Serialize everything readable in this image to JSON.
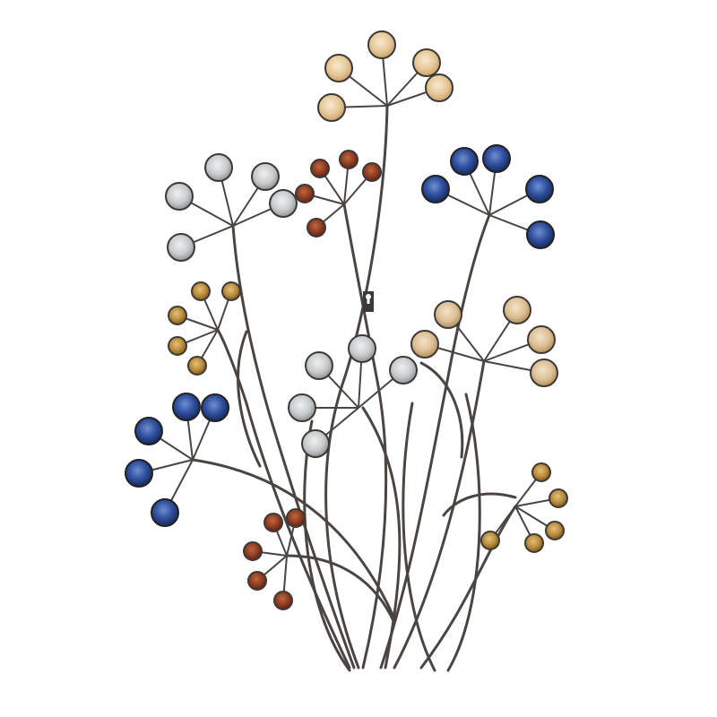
{
  "image": {
    "subject": "metal-wall-art-flowers",
    "background_color": "#ffffff",
    "stem_color": "#4a4542",
    "glass_colors": {
      "cream": "#e6c796",
      "silver": "#cfd2d3",
      "rust": "#8e3b22",
      "blue": "#2f4f9e",
      "amber": "#b88a3a",
      "tan": "#dcbf95"
    }
  }
}
